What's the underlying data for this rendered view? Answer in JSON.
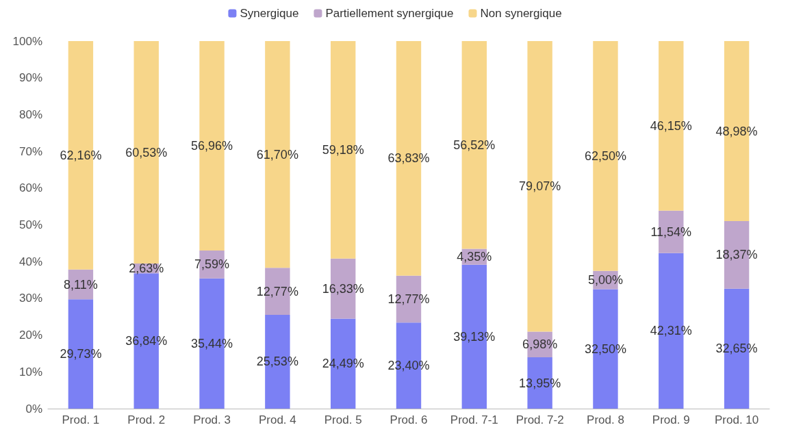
{
  "chart_data": {
    "type": "bar",
    "stacked": true,
    "legend": "top",
    "grid": false,
    "categories": [
      "Prod. 1",
      "Prod. 2",
      "Prod. 3",
      "Prod. 4",
      "Prod. 5",
      "Prod. 6",
      "Prod. 7-1",
      "Prod. 7-2",
      "Prod. 8",
      "Prod. 9",
      "Prod. 10"
    ],
    "ylim": [
      0,
      100
    ],
    "yticks": [
      {
        "value": 0,
        "label": "0%"
      },
      {
        "value": 10,
        "label": "10%"
      },
      {
        "value": 20,
        "label": "20%"
      },
      {
        "value": 30,
        "label": "30%"
      },
      {
        "value": 40,
        "label": "40%"
      },
      {
        "value": 50,
        "label": "50%"
      },
      {
        "value": 60,
        "label": "60%"
      },
      {
        "value": 70,
        "label": "70%"
      },
      {
        "value": 80,
        "label": "80%"
      },
      {
        "value": 90,
        "label": "90%"
      },
      {
        "value": 100,
        "label": "100%"
      }
    ],
    "series": [
      {
        "name": "Synergique",
        "color": "#7b80f4",
        "values": [
          29.73,
          36.84,
          35.44,
          25.53,
          24.49,
          23.4,
          39.13,
          13.95,
          32.5,
          42.31,
          32.65
        ],
        "value_labels": [
          "29,73%",
          "36,84%",
          "35,44%",
          "25,53%",
          "24,49%",
          "23,40%",
          "39,13%",
          "13,95%",
          "32,50%",
          "42,31%",
          "32,65%"
        ]
      },
      {
        "name": "Partiellement synergique",
        "color": "#bfa6cc",
        "values": [
          8.11,
          2.63,
          7.59,
          12.77,
          16.33,
          12.77,
          4.35,
          6.98,
          5.0,
          11.54,
          18.37
        ],
        "value_labels": [
          "8,11%",
          "2,63%",
          "7,59%",
          "12,77%",
          "16,33%",
          "12,77%",
          "4,35%",
          "6,98%",
          "5,00%",
          "11,54%",
          "18,37%"
        ]
      },
      {
        "name": "Non synergique",
        "color": "#f7d68a",
        "values": [
          62.16,
          60.53,
          56.96,
          61.7,
          59.18,
          63.83,
          56.52,
          79.07,
          62.5,
          46.15,
          48.98
        ],
        "value_labels": [
          "62,16%",
          "60,53%",
          "56,96%",
          "61,70%",
          "59,18%",
          "63,83%",
          "56,52%",
          "79,07%",
          "62,50%",
          "46,15%",
          "48,98%"
        ]
      }
    ]
  }
}
